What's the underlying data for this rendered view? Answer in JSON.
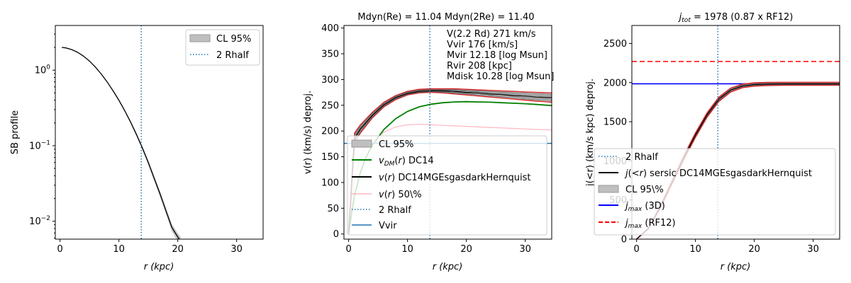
{
  "chart_data": [
    {
      "type": "line",
      "yscale": "log",
      "xlabel": "r (kpc)",
      "ylabel": "SB profile",
      "xlim": [
        -0.8,
        34.5
      ],
      "ylim": [
        0.0058,
        3.9
      ],
      "xticks": [
        "0",
        "10",
        "20",
        "30"
      ],
      "xtick_values": [
        0,
        10,
        20,
        30
      ],
      "yticks": [
        "10^0",
        "10^-1",
        "10^-2"
      ],
      "ytick_values": [
        1,
        0.1,
        0.01
      ],
      "vline": {
        "x": 13.8,
        "label": "2 Rhalf"
      },
      "band_label": "CL 95%",
      "series": [
        {
          "name": "SB profile",
          "x": [
            0.3,
            1,
            2,
            3,
            4,
            5,
            6,
            7,
            8,
            9,
            10,
            11,
            12,
            13,
            14,
            15,
            16,
            17,
            18,
            19,
            20,
            20.5
          ],
          "y": [
            2.0,
            1.97,
            1.87,
            1.72,
            1.53,
            1.32,
            1.1,
            0.89,
            0.7,
            0.535,
            0.4,
            0.29,
            0.205,
            0.14,
            0.093,
            0.06,
            0.037,
            0.023,
            0.0138,
            0.0083,
            0.0062,
            0.0055
          ]
        }
      ],
      "legend": [
        "CL 95%",
        "2 Rhalf"
      ],
      "legend_loc": "upper right"
    },
    {
      "type": "line",
      "title": "Mdyn(Re) = 11.04  Mdyn(2Re) = 11.40",
      "xlabel": "r (kpc)",
      "ylabel": "v(r) (km/s) deproj.",
      "xlim": [
        -0.8,
        34.5
      ],
      "ylim": [
        -10,
        405
      ],
      "xticks": [
        "0",
        "10",
        "20",
        "30"
      ],
      "xtick_values": [
        0,
        10,
        20,
        30
      ],
      "yticks": [
        "0",
        "50",
        "100",
        "150",
        "200",
        "250",
        "300",
        "350",
        "400"
      ],
      "ytick_values": [
        0,
        50,
        100,
        150,
        200,
        250,
        300,
        350,
        400
      ],
      "vline": {
        "x": 13.8,
        "label": "2 Rhalf"
      },
      "hline": {
        "y": 176,
        "label": "Vvir"
      },
      "annotation": [
        "V(2.2 Rd) 271 km/s",
        "Vvir 176 [km/s]",
        "Mvir 12.18 [log Msun]",
        "Rvir 208 [kpc]",
        "Mdisk 10.28 [log Msun]"
      ],
      "series": [
        {
          "name": "CL 95%",
          "type": "band",
          "x": [
            0,
            1,
            2,
            4,
            6,
            8,
            10,
            12,
            14,
            16,
            18,
            20,
            22,
            24,
            26,
            28,
            30,
            32,
            34.5
          ],
          "lower": [
            0,
            178,
            196,
            225,
            247,
            261,
            270,
            274,
            275,
            274,
            272,
            270,
            268,
            266,
            264,
            262,
            260,
            258,
            256
          ],
          "upper": [
            5,
            196,
            212,
            236,
            256,
            269,
            277,
            281,
            282,
            282,
            282,
            281,
            280,
            279,
            278,
            277,
            276,
            275,
            274
          ]
        },
        {
          "name": "v_DM(r) DC14",
          "color": "#008000",
          "x": [
            0,
            0.5,
            1,
            2,
            3,
            4,
            6,
            8,
            10,
            12,
            14,
            16,
            18,
            20,
            22,
            24,
            26,
            28,
            30,
            32,
            34.5
          ],
          "y": [
            0,
            40,
            75,
            120,
            150,
            172,
            203,
            224,
            238,
            247,
            252,
            255,
            256.5,
            257,
            256.5,
            256,
            255,
            254,
            253,
            251.5,
            249.5
          ]
        },
        {
          "name": "v(r) DC14MGEsgasdarkHernquist",
          "color": "#000000",
          "x": [
            0,
            1,
            2,
            4,
            6,
            8,
            10,
            12,
            14,
            16,
            18,
            20,
            22,
            24,
            26,
            28,
            30,
            32,
            34.5
          ],
          "y": [
            0,
            186,
            204,
            230,
            251,
            265,
            273,
            277,
            278,
            278,
            277,
            275,
            274,
            272,
            271,
            269,
            268,
            266,
            265
          ]
        },
        {
          "name": "v(r) 50\\%",
          "color": "#ffb6c1",
          "x": [
            0,
            0.5,
            1,
            2,
            3,
            4,
            6,
            8,
            10,
            12,
            14,
            16,
            18,
            20,
            22,
            24,
            26,
            28,
            30,
            32,
            34.5
          ],
          "y": [
            0,
            60,
            110,
            150,
            168,
            180,
            198,
            208,
            212,
            213,
            212,
            211,
            210,
            209,
            208,
            207,
            206,
            205,
            204,
            203,
            202
          ]
        }
      ],
      "legend": [
        "CL 95%",
        "v_DM(r) DC14",
        "v(r) DC14MGEsgasdarkHernquist",
        "v(r) 50\\%",
        "2 Rhalf",
        "Vvir"
      ],
      "legend_loc": "lower right"
    },
    {
      "type": "line",
      "title": "j_tot = 1978 (0.87 x RF12)",
      "xlabel": "r (kpc)",
      "ylabel": "j(<r) (km/s kpc) deproj.",
      "xlim": [
        -0.8,
        34.5
      ],
      "ylim": [
        0,
        2730
      ],
      "xticks": [
        "0",
        "10",
        "20",
        "30"
      ],
      "xtick_values": [
        0,
        10,
        20,
        30
      ],
      "yticks": [
        "0",
        "500",
        "1000",
        "1500",
        "2000",
        "2500"
      ],
      "ytick_values": [
        0,
        500,
        1000,
        1500,
        2000,
        2500
      ],
      "vline": {
        "x": 13.8,
        "label": "2 Rhalf"
      },
      "hlines": [
        {
          "y": 1985,
          "label": "j_max (3D)",
          "color": "#0000ff",
          "style": "solid"
        },
        {
          "y": 2270,
          "label": "j_max (RF12)",
          "color": "#ff0000",
          "style": "dashed"
        }
      ],
      "series": [
        {
          "name": "CL 95%",
          "type": "band",
          "x": [
            0,
            2,
            4,
            6,
            8,
            10,
            12,
            14,
            16,
            18,
            20,
            22,
            24,
            26,
            28,
            30,
            32,
            34.5
          ],
          "lower": [
            0,
            130,
            390,
            700,
            1010,
            1300,
            1560,
            1760,
            1880,
            1935,
            1955,
            1962,
            1965,
            1966,
            1966,
            1966,
            1966,
            1966
          ],
          "upper": [
            0,
            140,
            420,
            740,
            1060,
            1355,
            1615,
            1815,
            1930,
            1980,
            1998,
            2002,
            2003,
            2003,
            2003,
            2003,
            2003,
            2003
          ]
        },
        {
          "name": "j(<r) sersic DC14MGEsgasdarkHernquist",
          "color": "#000000",
          "x": [
            0,
            2,
            4,
            6,
            8,
            10,
            12,
            14,
            16,
            18,
            20,
            22,
            24,
            26,
            28,
            30,
            32,
            34.5
          ],
          "y": [
            0,
            135,
            405,
            720,
            1035,
            1330,
            1590,
            1790,
            1905,
            1957,
            1975,
            1980,
            1982,
            1983,
            1983,
            1983,
            1983,
            1983
          ]
        }
      ],
      "legend": [
        "2 Rhalf",
        "j(<r) sersic DC14MGEsgasdarkHernquist",
        "CL 95\\%",
        "j_max (3D)",
        "j_max (RF12)"
      ],
      "legend_loc": "lower right"
    }
  ]
}
